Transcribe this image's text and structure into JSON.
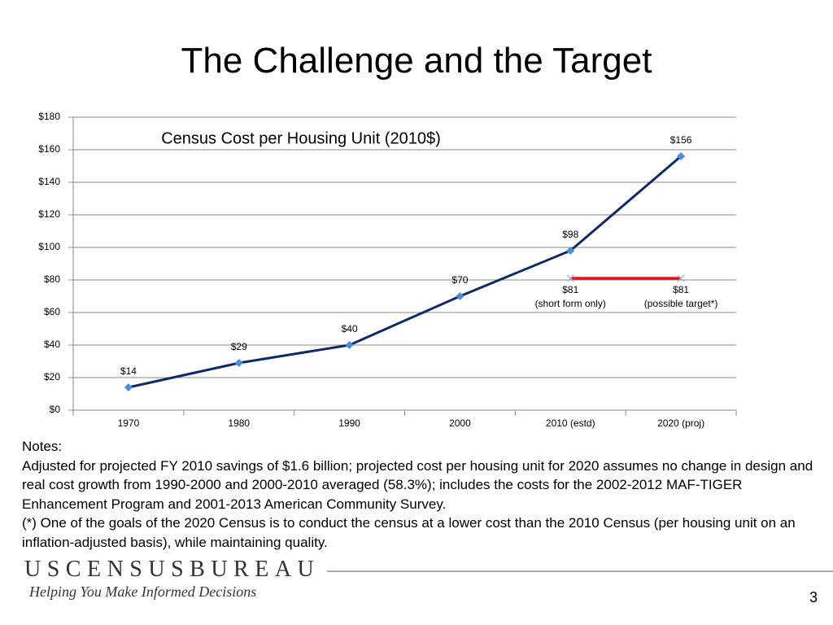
{
  "title": "The Challenge and the Target",
  "chart_data": {
    "type": "line",
    "title": "Census Cost per Housing Unit (2010$)",
    "categories": [
      "1970",
      "1980",
      "1990",
      "2000",
      "2010 (estd)",
      "2020 (proj)"
    ],
    "series": [
      {
        "color": "#0f2a66",
        "marker_color": "#4a90d9",
        "values": [
          14,
          29,
          40,
          70,
          98,
          156
        ],
        "value_labels": [
          "$14",
          "$29",
          "$40",
          "$70",
          "$98",
          "$156"
        ]
      },
      {
        "color": "#e3141b",
        "marker_color": "#9db8e0",
        "values": [
          null,
          null,
          null,
          null,
          81,
          81
        ],
        "value_labels": [
          null,
          null,
          null,
          null,
          "$81",
          "$81"
        ],
        "annotations": [
          null,
          null,
          null,
          null,
          "(short form only)",
          "(possible target*)"
        ]
      }
    ],
    "ylim": [
      0,
      180
    ],
    "yticks": [
      {
        "value": 0,
        "label": "$0"
      },
      {
        "value": 20,
        "label": "$20"
      },
      {
        "value": 40,
        "label": "$40"
      },
      {
        "value": 60,
        "label": "$60"
      },
      {
        "value": 80,
        "label": "$80"
      },
      {
        "value": 100,
        "label": "$100"
      },
      {
        "value": 120,
        "label": "$120"
      },
      {
        "value": 140,
        "label": "$140"
      },
      {
        "value": 160,
        "label": "$160"
      },
      {
        "value": 180,
        "label": "$180"
      }
    ],
    "grid": true
  },
  "notes": {
    "heading": "Notes:",
    "paragraphs": [
      "Adjusted for projected FY 2010 savings of $1.6 billion; projected cost per housing unit for 2020 assumes no change in design and real cost growth from 1990-2000 and 2000-2010 averaged (58.3%); includes the costs for the 2002-2012 MAF-TIGER Enhancement Program and 2001-2013 American Community Survey.",
      "(*) One of the goals of the 2020 Census is to conduct the census at a lower cost than the 2010 Census (per housing unit on an inflation-adjusted basis), while maintaining quality."
    ]
  },
  "footer": {
    "brand": "USCENSUSBUREAU",
    "tagline": "Helping You Make Informed Decisions",
    "page": "3"
  }
}
